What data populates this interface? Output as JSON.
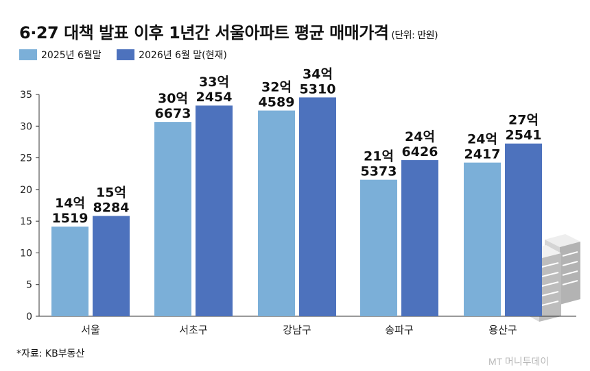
{
  "title": "6·27 대책 발표 이후 1년간 서울아파트 평균 매매가격",
  "unit": "(단위: 만원)",
  "source": "*자료: KB부동산",
  "watermark": "MT 머니투데이",
  "colors": {
    "series1": "#7bafd8",
    "series2": "#4d72bd"
  },
  "chart_data": {
    "type": "bar",
    "categories": [
      "서울",
      "서초구",
      "강남구",
      "송파구",
      "용산구"
    ],
    "series": [
      {
        "name": "2025년 6월말",
        "values": [
          141519,
          306673,
          324589,
          215373,
          242417
        ],
        "labels": [
          [
            "14억",
            "1519"
          ],
          [
            "30억",
            "6673"
          ],
          [
            "32억",
            "4589"
          ],
          [
            "21억",
            "5373"
          ],
          [
            "24억",
            "2417"
          ]
        ]
      },
      {
        "name": "2026년 6월 말(현재)",
        "values": [
          158284,
          332454,
          345310,
          246426,
          272541
        ],
        "labels": [
          [
            "15억",
            "8284"
          ],
          [
            "33억",
            "2454"
          ],
          [
            "34억",
            "5310"
          ],
          [
            "24억",
            "6426"
          ],
          [
            "27억",
            "2541"
          ]
        ]
      }
    ],
    "yticks": [
      "0",
      "5",
      "10",
      "15",
      "20",
      "25",
      "30",
      "35"
    ],
    "ylim": [
      0,
      350000
    ],
    "grid": false,
    "legend": "top-left"
  }
}
